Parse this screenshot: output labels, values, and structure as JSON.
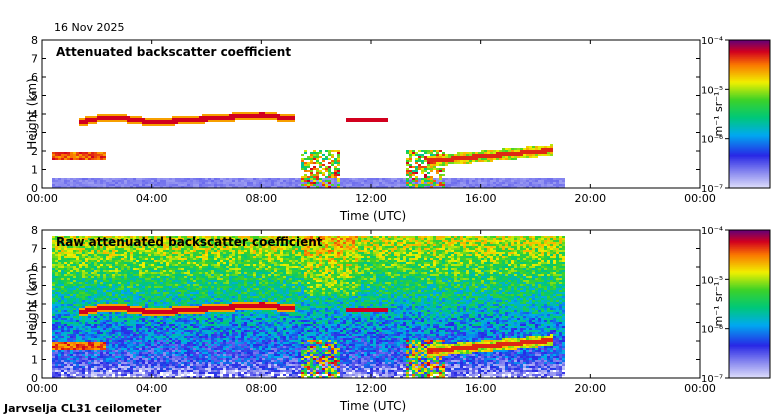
{
  "date": "16 Nov 2025",
  "caption": "Jarvselja CL31 ceilometer",
  "colors": {
    "frame": "#000000",
    "cloud_band": "#b00028",
    "low_signal": "#c9c9f5"
  },
  "chart_data": [
    {
      "type": "heatmap",
      "title": "Attenuated backscatter coefficient",
      "xlabel": "Time (UTC)",
      "ylabel": "Height (km)",
      "xlim": [
        0,
        24
      ],
      "ylim": [
        0,
        8
      ],
      "data_end_hour": 19,
      "x_ticks": [
        "00:00",
        "04:00",
        "08:00",
        "12:00",
        "16:00",
        "20:00",
        "00:00"
      ],
      "y_ticks": [
        "0",
        "1",
        "2",
        "3",
        "4",
        "5",
        "6",
        "7",
        "8"
      ],
      "colorbar": {
        "label": "m⁻¹ sr⁻¹",
        "scale": "log",
        "ticks": [
          "10⁻⁷",
          "10⁻⁶",
          "10⁻⁵",
          "10⁻⁴"
        ],
        "range": [
          1e-07,
          0.0001
        ]
      },
      "cloud_layer_km": {
        "hours": [
          1.3,
          2,
          3,
          4,
          5,
          6,
          7,
          8,
          9
        ],
        "heights": [
          3.6,
          3.8,
          3.8,
          3.6,
          3.7,
          3.8,
          3.9,
          4.0,
          3.8
        ]
      }
    },
    {
      "type": "heatmap",
      "title": "Raw attenuated backscatter coefficient",
      "xlabel": "Time (UTC)",
      "ylabel": "Height (km)",
      "xlim": [
        0,
        24
      ],
      "ylim": [
        0,
        8
      ],
      "data_end_hour": 19,
      "x_ticks": [
        "00:00",
        "04:00",
        "08:00",
        "12:00",
        "16:00",
        "20:00",
        "00:00"
      ],
      "y_ticks": [
        "0",
        "1",
        "2",
        "3",
        "4",
        "5",
        "6",
        "7",
        "8"
      ],
      "colorbar": {
        "label": "m⁻¹ sr⁻¹",
        "scale": "log",
        "ticks": [
          "10⁻⁷",
          "10⁻⁶",
          "10⁻⁵",
          "10⁻⁴"
        ],
        "range": [
          1e-07,
          0.0001
        ]
      }
    }
  ]
}
